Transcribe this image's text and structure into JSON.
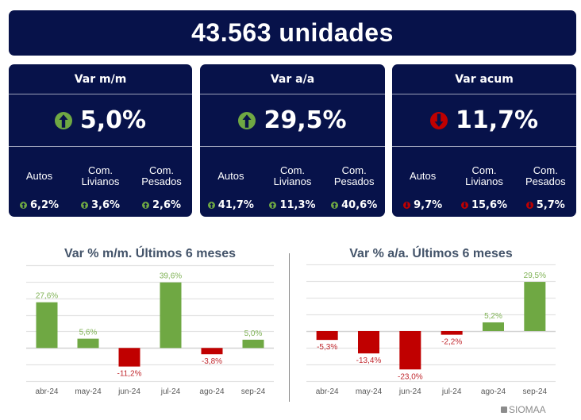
{
  "header": {
    "title": "43.563 unidades"
  },
  "colors": {
    "navy": "#07124a",
    "up": "#6fa843",
    "down": "#c00000",
    "title_gray": "#44546a",
    "grid": "#e3e3e3"
  },
  "cards": [
    {
      "title": "Var m/m",
      "value": "5,0%",
      "direction": "up",
      "icon": "arrow-up-circle-icon",
      "subs": [
        {
          "label1": "Autos",
          "label2": "",
          "value": "6,2%",
          "direction": "up"
        },
        {
          "label1": "Com.",
          "label2": "Livianos",
          "value": "3,6%",
          "direction": "up"
        },
        {
          "label1": "Com.",
          "label2": "Pesados",
          "value": "2,6%",
          "direction": "up"
        }
      ]
    },
    {
      "title": "Var a/a",
      "value": "29,5%",
      "direction": "up",
      "icon": "arrow-up-circle-icon",
      "subs": [
        {
          "label1": "Autos",
          "label2": "",
          "value": "41,7%",
          "direction": "up"
        },
        {
          "label1": "Com.",
          "label2": "Livianos",
          "value": "11,3%",
          "direction": "up"
        },
        {
          "label1": "Com.",
          "label2": "Pesados",
          "value": "40,6%",
          "direction": "up"
        }
      ]
    },
    {
      "title": "Var acum",
      "value": "11,7%",
      "direction": "down",
      "icon": "arrow-down-circle-icon",
      "subs": [
        {
          "label1": "Autos",
          "label2": "",
          "value": "9,7%",
          "direction": "down"
        },
        {
          "label1": "Com.",
          "label2": "Livianos",
          "value": "15,6%",
          "direction": "down"
        },
        {
          "label1": "Com.",
          "label2": "Pesados",
          "value": "5,7%",
          "direction": "down"
        }
      ]
    }
  ],
  "chart_data": [
    {
      "type": "bar",
      "title": "Var % m/m. Últimos 6 meses",
      "categories": [
        "abr-24",
        "may-24",
        "jun-24",
        "jul-24",
        "ago-24",
        "sep-24"
      ],
      "values": [
        27.6,
        5.6,
        -11.2,
        39.6,
        -3.8,
        5.0
      ],
      "labels": [
        "27,6%",
        "5,6%",
        "-11,2%",
        "39,6%",
        "-3,8%",
        "5,0%"
      ],
      "xlabel": "",
      "ylabel": "",
      "ylim": [
        -20,
        50
      ],
      "grid_step": 10,
      "grid": true,
      "legend": "none"
    },
    {
      "type": "bar",
      "title": "Var % a/a. Últimos 6 meses",
      "categories": [
        "abr-24",
        "may-24",
        "jun-24",
        "jul-24",
        "ago-24",
        "sep-24"
      ],
      "values": [
        -5.3,
        -13.4,
        -23.0,
        -2.2,
        5.2,
        29.5
      ],
      "labels": [
        "-5,3%",
        "-13,4%",
        "-23,0%",
        "-2,2%",
        "5,2%",
        "29,5%"
      ],
      "xlabel": "",
      "ylabel": "",
      "ylim": [
        -30,
        40
      ],
      "grid_step": 10,
      "grid": true,
      "legend": "none"
    }
  ],
  "footer": {
    "brand": "SIOMAA"
  }
}
